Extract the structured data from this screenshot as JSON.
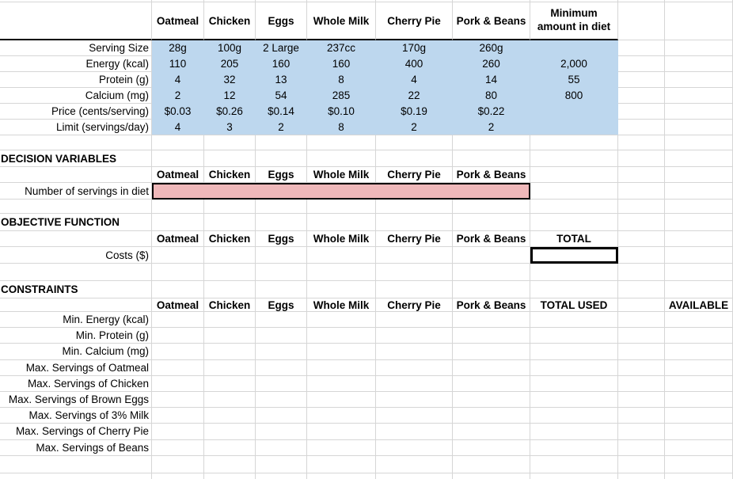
{
  "colors": {
    "grid": "#d6d6d6",
    "blue": "#bdd7ee",
    "pink": "#efb8ba",
    "thick_border": "#000000"
  },
  "products": [
    "Oatmeal",
    "Chicken",
    "Eggs",
    "Whole Milk",
    "Cherry Pie",
    "Pork & Beans"
  ],
  "top_table": {
    "minimum_header": "Minimum\namount in diet",
    "rows": [
      {
        "label": "Serving Size",
        "values": [
          "28g",
          "100g",
          "2 Large",
          "237cc",
          "170g",
          "260g"
        ],
        "minimum": ""
      },
      {
        "label": "Energy (kcal)",
        "values": [
          "110",
          "205",
          "160",
          "160",
          "400",
          "260"
        ],
        "minimum": "2,000"
      },
      {
        "label": "Protein (g)",
        "values": [
          "4",
          "32",
          "13",
          "8",
          "4",
          "14"
        ],
        "minimum": "55"
      },
      {
        "label": "Calcium (mg)",
        "values": [
          "2",
          "12",
          "54",
          "285",
          "22",
          "80"
        ],
        "minimum": "800"
      },
      {
        "label": "Price (cents/serving)",
        "values": [
          "$0.03",
          "$0.26",
          "$0.14",
          "$0.10",
          "$0.19",
          "$0.22"
        ],
        "minimum": ""
      },
      {
        "label": "Limit (servings/day)",
        "values": [
          "4",
          "3",
          "2",
          "8",
          "2",
          "2"
        ],
        "minimum": ""
      }
    ]
  },
  "decision_variables": {
    "title": "DECISION VARIABLES",
    "row_label": "Number of servings in diet"
  },
  "objective_function": {
    "title": "OBJECTIVE FUNCTION",
    "row_label": "Costs ($)",
    "total_header": "TOTAL"
  },
  "constraints": {
    "title": "CONSTRAINTS",
    "total_used_header": "TOTAL USED",
    "available_header": "AVAILABLE",
    "rows": [
      "Min. Energy (kcal)",
      "Min. Protein (g)",
      "Min. Calcium (mg)",
      "Max. Servings of Oatmeal",
      "Max. Servings of Chicken",
      "Max. Servings of Brown Eggs",
      "Max. Servings of 3% Milk",
      "Max. Servings of Cherry Pie",
      "Max. Servings of Beans"
    ]
  }
}
